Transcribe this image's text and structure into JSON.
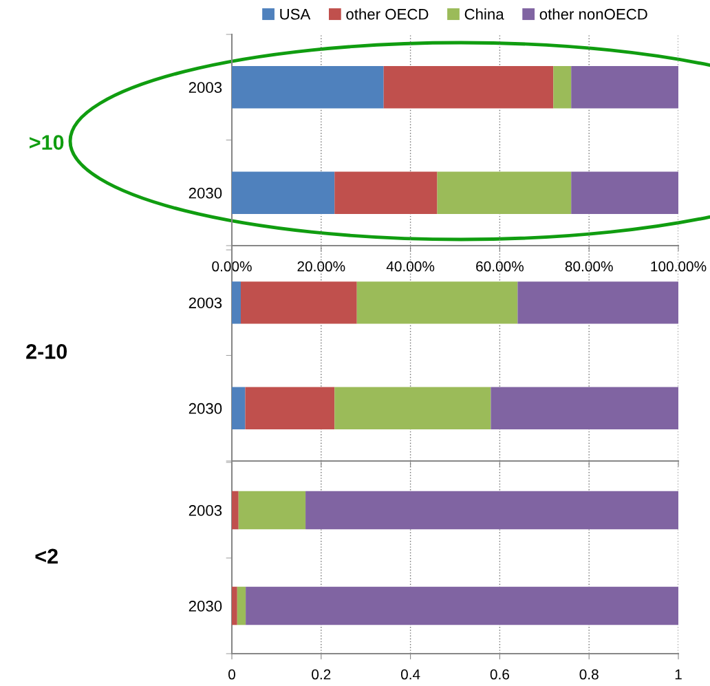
{
  "chart_data": [
    {
      "type": "bar",
      "orientation": "horizontal",
      "stacked": true,
      "ylabel": ">10",
      "categories": [
        "2003",
        "2030"
      ],
      "series": [
        {
          "name": "USA",
          "color": "#4f81bd",
          "values": [
            0.34,
            0.23
          ]
        },
        {
          "name": "other OECD",
          "color": "#c0504d",
          "values": [
            0.38,
            0.23
          ]
        },
        {
          "name": "China",
          "color": "#9bbb59",
          "values": [
            0.04,
            0.3
          ]
        },
        {
          "name": "other nonOECD",
          "color": "#8064a2",
          "values": [
            0.24,
            0.24
          ]
        }
      ],
      "xlim": [
        0,
        1
      ],
      "xticks": [
        {
          "value": 0,
          "label": "0.00%"
        },
        {
          "value": 0.2,
          "label": "20.00%"
        },
        {
          "value": 0.4,
          "label": "40.00%"
        },
        {
          "value": 0.6,
          "label": "60.00%"
        },
        {
          "value": 0.8,
          "label": "80.00%"
        },
        {
          "value": 1,
          "label": "100.00%"
        }
      ],
      "grid": "x",
      "legend": "top"
    },
    {
      "type": "bar",
      "orientation": "horizontal",
      "stacked": true,
      "ylabel": "2-10",
      "categories": [
        "2003",
        "2030"
      ],
      "series": [
        {
          "color": "#4f81bd",
          "values": [
            0.02,
            0.03
          ]
        },
        {
          "color": "#c0504d",
          "values": [
            0.26,
            0.2
          ]
        },
        {
          "color": "#9bbb59",
          "values": [
            0.36,
            0.35
          ]
        },
        {
          "color": "#8064a2",
          "values": [
            0.36,
            0.42
          ]
        }
      ],
      "xlim": [
        0,
        1
      ],
      "xticks": [
        0,
        0.2,
        0.4,
        0.6,
        0.8,
        1
      ],
      "grid": "x",
      "tick_labels": "y"
    },
    {
      "type": "bar",
      "orientation": "horizontal",
      "stacked": true,
      "ylabel": "<2",
      "categories": [
        "2003",
        "2030"
      ],
      "series": [
        {
          "color": "#4f81bd",
          "values": [
            0,
            0
          ]
        },
        {
          "color": "#c0504d",
          "values": [
            0.015,
            0.012
          ]
        },
        {
          "color": "#9bbb59",
          "values": [
            0.15,
            0.019
          ]
        },
        {
          "color": "#8064a2",
          "values": [
            0.835,
            0.969
          ]
        }
      ],
      "xlim": [
        0,
        1
      ],
      "xticks": [
        0,
        0.2,
        0.4,
        0.6,
        0.8,
        1
      ],
      "grid": "x"
    }
  ]
}
